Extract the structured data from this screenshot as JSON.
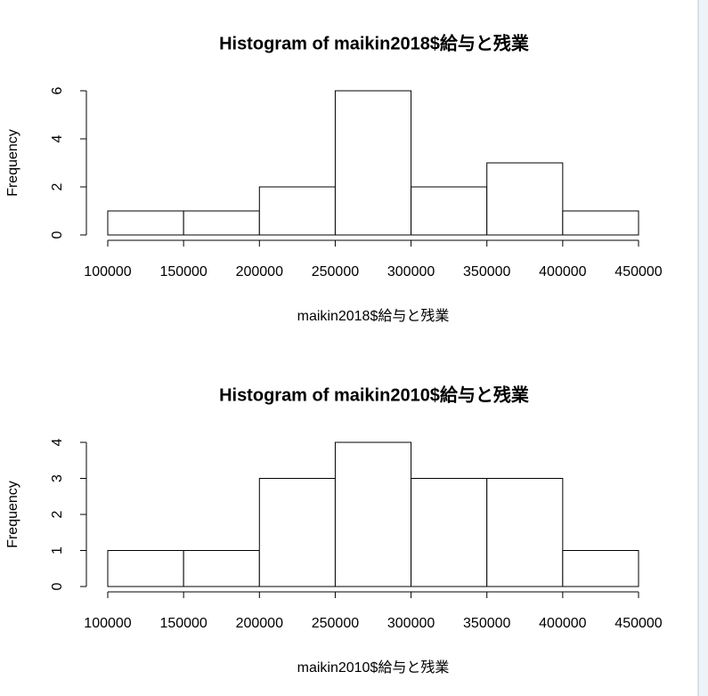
{
  "chart_data": [
    {
      "type": "histogram",
      "title": "Histogram of maikin2018$給与と残業",
      "x_label": "maikin2018$給与と残業",
      "y_label": "Frequency",
      "bins": [
        100000,
        150000,
        200000,
        250000,
        300000,
        350000,
        400000,
        450000
      ],
      "values": [
        1,
        1,
        2,
        6,
        2,
        3,
        1
      ],
      "xlim": [
        100000,
        450000
      ],
      "xticks": [
        100000,
        150000,
        200000,
        250000,
        300000,
        350000,
        400000,
        450000
      ],
      "ylim": [
        0,
        6
      ],
      "yticks": [
        0,
        2,
        4,
        6
      ],
      "color": "#ffffff"
    },
    {
      "type": "histogram",
      "title": "Histogram of maikin2010$給与と残業",
      "x_label": "maikin2010$給与と残業",
      "y_label": "Frequency",
      "bins": [
        100000,
        150000,
        200000,
        250000,
        300000,
        350000,
        400000,
        450000
      ],
      "values": [
        1,
        1,
        3,
        4,
        3,
        3,
        1
      ],
      "xlim": [
        100000,
        450000
      ],
      "xticks": [
        100000,
        150000,
        200000,
        250000,
        300000,
        350000,
        400000,
        450000
      ],
      "ylim": [
        0,
        4
      ],
      "yticks": [
        0,
        1,
        2,
        3,
        4
      ],
      "color": "#ffffff"
    }
  ]
}
